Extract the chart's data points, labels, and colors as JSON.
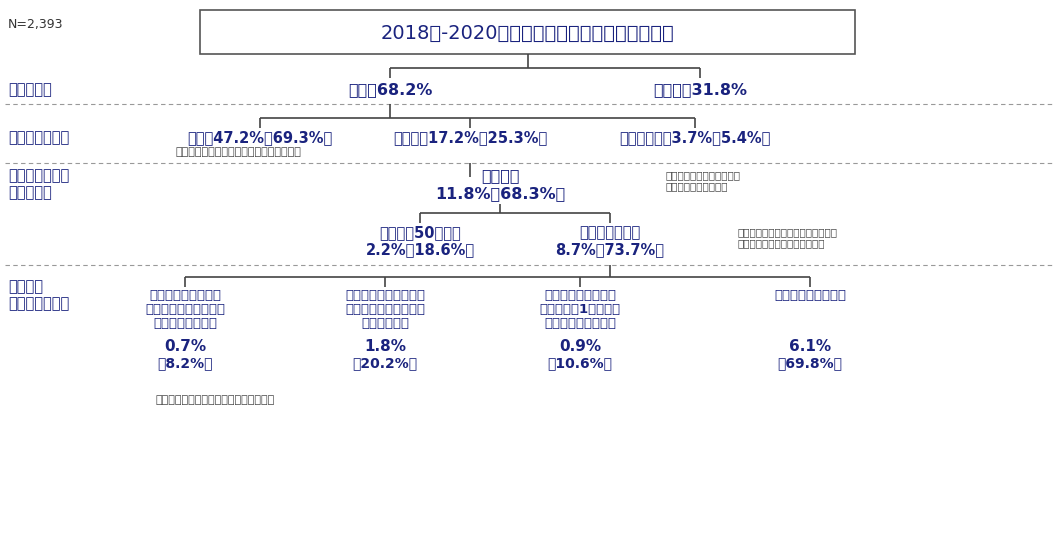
{
  "bg_color": "#ffffff",
  "text_color": "#1a237e",
  "box_edge_color": "#555555",
  "title_text": "2018年-2020年の間に、中古物件を購入した人",
  "n_label": "N=2,393",
  "row1_left_label": "住宅ローン",
  "row1_left": "利用：68.2%",
  "row1_right": "非利用：31.8%",
  "row2_left_label": "住宅ローン控除",
  "row2_a": "利用：47.2%（69.3%）",
  "row2_b": "非利用：17.2%（25.3%）",
  "row2_c": "わからない：3.7%（5.4%）",
  "row2_note": "（　）内は住宅ローン利用者に占める割合",
  "row3_left_label1": "住宅ローン控除",
  "row3_left_label2": "非利用理由",
  "row3_center": "物件理由",
  "row3_center_pct": "11.8%（68.3%）",
  "row3_note_line1": "（　）内は住宅ローン控除",
  "row3_note_line2": "非利用者に占める割合",
  "row4_left": "床面積が50㎡未満",
  "row4_left_pct": "2.2%（18.6%）",
  "row4_right": "築年数が要件外",
  "row4_right_pct": "8.7%（73.7%）",
  "row4_note_line1": "（　）内は住宅ローン控除非利用理",
  "row4_note_line2": "由が物件理由の人に占める割合",
  "row5_left_label1": "築年数に",
  "row5_left_label2": "代わる要件適用",
  "row5_a_title_1": "既存住宅売買瑕疵保",
  "row5_a_title_2": "険に加入しようとした",
  "row5_a_title_3": "が、できなかった",
  "row5_b_title_1": "耐震基準適合証明書を",
  "row5_b_title_2": "取得しようとしたが、",
  "row5_b_title_3": "できなかった",
  "row5_c_title_1": "既存住宅性能評価書",
  "row5_c_title_2": "（耐震等級1級以上）",
  "row5_c_title_3": "取得ができなかった",
  "row5_d_title_1": "特に何もしていない",
  "row5_a_pct": "0.7%",
  "row5_a_sub": "（8.2%）",
  "row5_b_pct": "1.8%",
  "row5_b_sub": "（20.2%）",
  "row5_c_pct": "0.9%",
  "row5_c_sub": "（10.6%）",
  "row5_d_pct": "6.1%",
  "row5_d_sub": "（69.8%）",
  "row5_note": "（　）内は築年数が要件外に占める割合"
}
